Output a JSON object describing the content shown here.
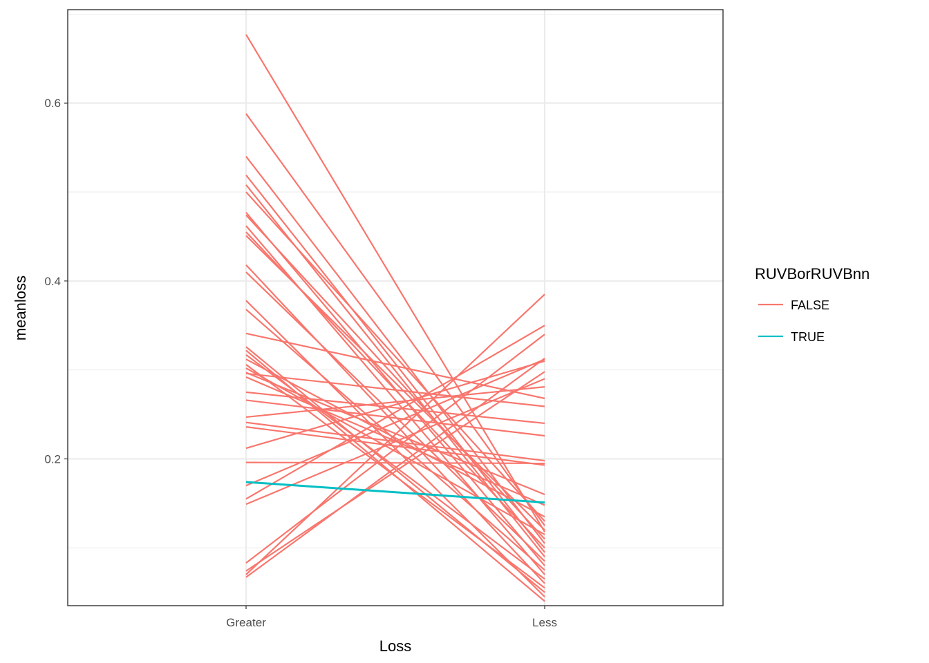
{
  "chart_data": {
    "type": "line",
    "xlabel": "Loss",
    "ylabel": "meanloss",
    "categories": [
      "Greater",
      "Less"
    ],
    "ylim": [
      0.035,
      0.705
    ],
    "y_ticks": [
      0.2,
      0.4,
      0.6
    ],
    "y_tick_labels": [
      "0.2",
      "0.4",
      "0.6"
    ],
    "grid": true,
    "legend_placement": "right",
    "legend_title": "RUVBorRUVBnn",
    "colors": {
      "FALSE": "#F8766D",
      "TRUE": "#00BFC4"
    },
    "series": [
      {
        "group": "FALSE",
        "values": [
          0.677,
          0.118
        ]
      },
      {
        "group": "FALSE",
        "values": [
          0.588,
          0.125
        ]
      },
      {
        "group": "FALSE",
        "values": [
          0.54,
          0.105
        ]
      },
      {
        "group": "FALSE",
        "values": [
          0.519,
          0.095
        ]
      },
      {
        "group": "FALSE",
        "values": [
          0.508,
          0.09
        ]
      },
      {
        "group": "FALSE",
        "values": [
          0.5,
          0.13
        ]
      },
      {
        "group": "FALSE",
        "values": [
          0.477,
          0.08
        ]
      },
      {
        "group": "FALSE",
        "values": [
          0.474,
          0.11
        ]
      },
      {
        "group": "FALSE",
        "values": [
          0.462,
          0.07
        ]
      },
      {
        "group": "FALSE",
        "values": [
          0.455,
          0.1
        ]
      },
      {
        "group": "FALSE",
        "values": [
          0.451,
          0.12
        ]
      },
      {
        "group": "FALSE",
        "values": [
          0.418,
          0.06
        ]
      },
      {
        "group": "FALSE",
        "values": [
          0.41,
          0.085
        ]
      },
      {
        "group": "FALSE",
        "values": [
          0.378,
          0.045
        ]
      },
      {
        "group": "FALSE",
        "values": [
          0.368,
          0.075
        ]
      },
      {
        "group": "FALSE",
        "values": [
          0.341,
          0.268
        ]
      },
      {
        "group": "FALSE",
        "values": [
          0.326,
          0.05
        ]
      },
      {
        "group": "FALSE",
        "values": [
          0.322,
          0.04
        ]
      },
      {
        "group": "FALSE",
        "values": [
          0.317,
          0.065
        ]
      },
      {
        "group": "FALSE",
        "values": [
          0.312,
          0.135
        ]
      },
      {
        "group": "FALSE",
        "values": [
          0.306,
          0.055
        ]
      },
      {
        "group": "FALSE",
        "values": [
          0.302,
          0.115
        ]
      },
      {
        "group": "FALSE",
        "values": [
          0.297,
          0.16
        ]
      },
      {
        "group": "FALSE",
        "values": [
          0.292,
          0.148
        ]
      },
      {
        "group": "FALSE",
        "values": [
          0.296,
          0.259
        ]
      },
      {
        "group": "FALSE",
        "values": [
          0.275,
          0.24
        ]
      },
      {
        "group": "FALSE",
        "values": [
          0.266,
          0.226
        ]
      },
      {
        "group": "FALSE",
        "values": [
          0.247,
          0.281
        ]
      },
      {
        "group": "FALSE",
        "values": [
          0.241,
          0.198
        ]
      },
      {
        "group": "FALSE",
        "values": [
          0.236,
          0.193
        ]
      },
      {
        "group": "FALSE",
        "values": [
          0.212,
          0.31
        ]
      },
      {
        "group": "FALSE",
        "values": [
          0.196,
          0.195
        ]
      },
      {
        "group": "FALSE",
        "values": [
          0.17,
          0.312
        ]
      },
      {
        "group": "FALSE",
        "values": [
          0.155,
          0.35
        ]
      },
      {
        "group": "FALSE",
        "values": [
          0.149,
          0.29
        ]
      },
      {
        "group": "FALSE",
        "values": [
          0.083,
          0.34
        ]
      },
      {
        "group": "FALSE",
        "values": [
          0.074,
          0.298
        ]
      },
      {
        "group": "FALSE",
        "values": [
          0.07,
          0.385
        ]
      },
      {
        "group": "FALSE",
        "values": [
          0.067,
          0.313
        ]
      },
      {
        "group": "TRUE",
        "values": [
          0.174,
          0.151
        ]
      }
    ]
  }
}
